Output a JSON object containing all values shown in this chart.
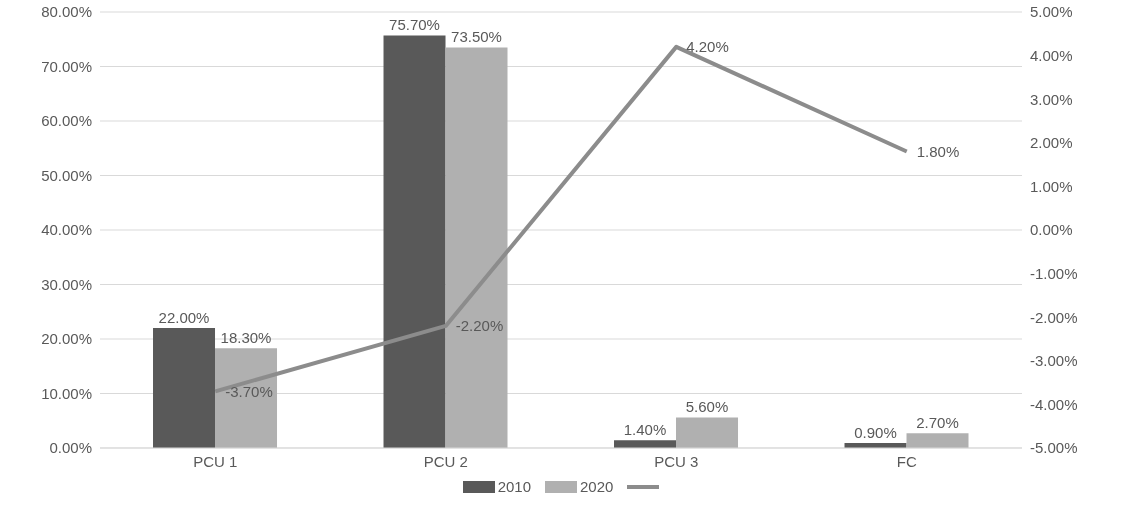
{
  "chart_data": {
    "type": "bar",
    "categories": [
      "PCU 1",
      "PCU 2",
      "PCU 3",
      "FC"
    ],
    "series": [
      {
        "name": "2010",
        "color": "#595959",
        "values": [
          22.0,
          75.7,
          1.4,
          0.9
        ],
        "value_labels": [
          "22.00%",
          "75.70%",
          "1.40%",
          "0.90%"
        ]
      },
      {
        "name": "2020",
        "color": "#b0b0b0",
        "values": [
          18.3,
          73.5,
          5.6,
          2.7
        ],
        "value_labels": [
          "18.30%",
          "73.50%",
          "5.60%",
          "2.70%"
        ]
      },
      {
        "type": "line",
        "axis": "y2",
        "color": "#8c8c8c",
        "values": [
          -3.7,
          -2.2,
          4.2,
          1.8
        ],
        "value_labels": [
          "-3.70%",
          "-2.20%",
          "4.20%",
          "1.80%"
        ]
      }
    ],
    "ylim": [
      0,
      80
    ],
    "yticks": [
      {
        "value": 0,
        "label": "0.00%"
      },
      {
        "value": 10,
        "label": "10.00%"
      },
      {
        "value": 20,
        "label": "20.00%"
      },
      {
        "value": 30,
        "label": "30.00%"
      },
      {
        "value": 40,
        "label": "40.00%"
      },
      {
        "value": 50,
        "label": "50.00%"
      },
      {
        "value": 60,
        "label": "60.00%"
      },
      {
        "value": 70,
        "label": "70.00%"
      },
      {
        "value": 80,
        "label": "80.00%"
      }
    ],
    "y2lim": [
      -5,
      5
    ],
    "y2ticks": [
      {
        "value": -5,
        "label": "-5.00%"
      },
      {
        "value": -4,
        "label": "-4.00%"
      },
      {
        "value": -3,
        "label": "-3.00%"
      },
      {
        "value": -2,
        "label": "-2.00%"
      },
      {
        "value": -1,
        "label": "-1.00%"
      },
      {
        "value": 0,
        "label": "0.00%"
      },
      {
        "value": 1,
        "label": "1.00%"
      },
      {
        "value": 2,
        "label": "2.00%"
      },
      {
        "value": 3,
        "label": "3.00%"
      },
      {
        "value": 4,
        "label": "4.00%"
      },
      {
        "value": 5,
        "label": "5.00%"
      }
    ],
    "grid": "y",
    "legend": "bottom",
    "marker": "none"
  }
}
